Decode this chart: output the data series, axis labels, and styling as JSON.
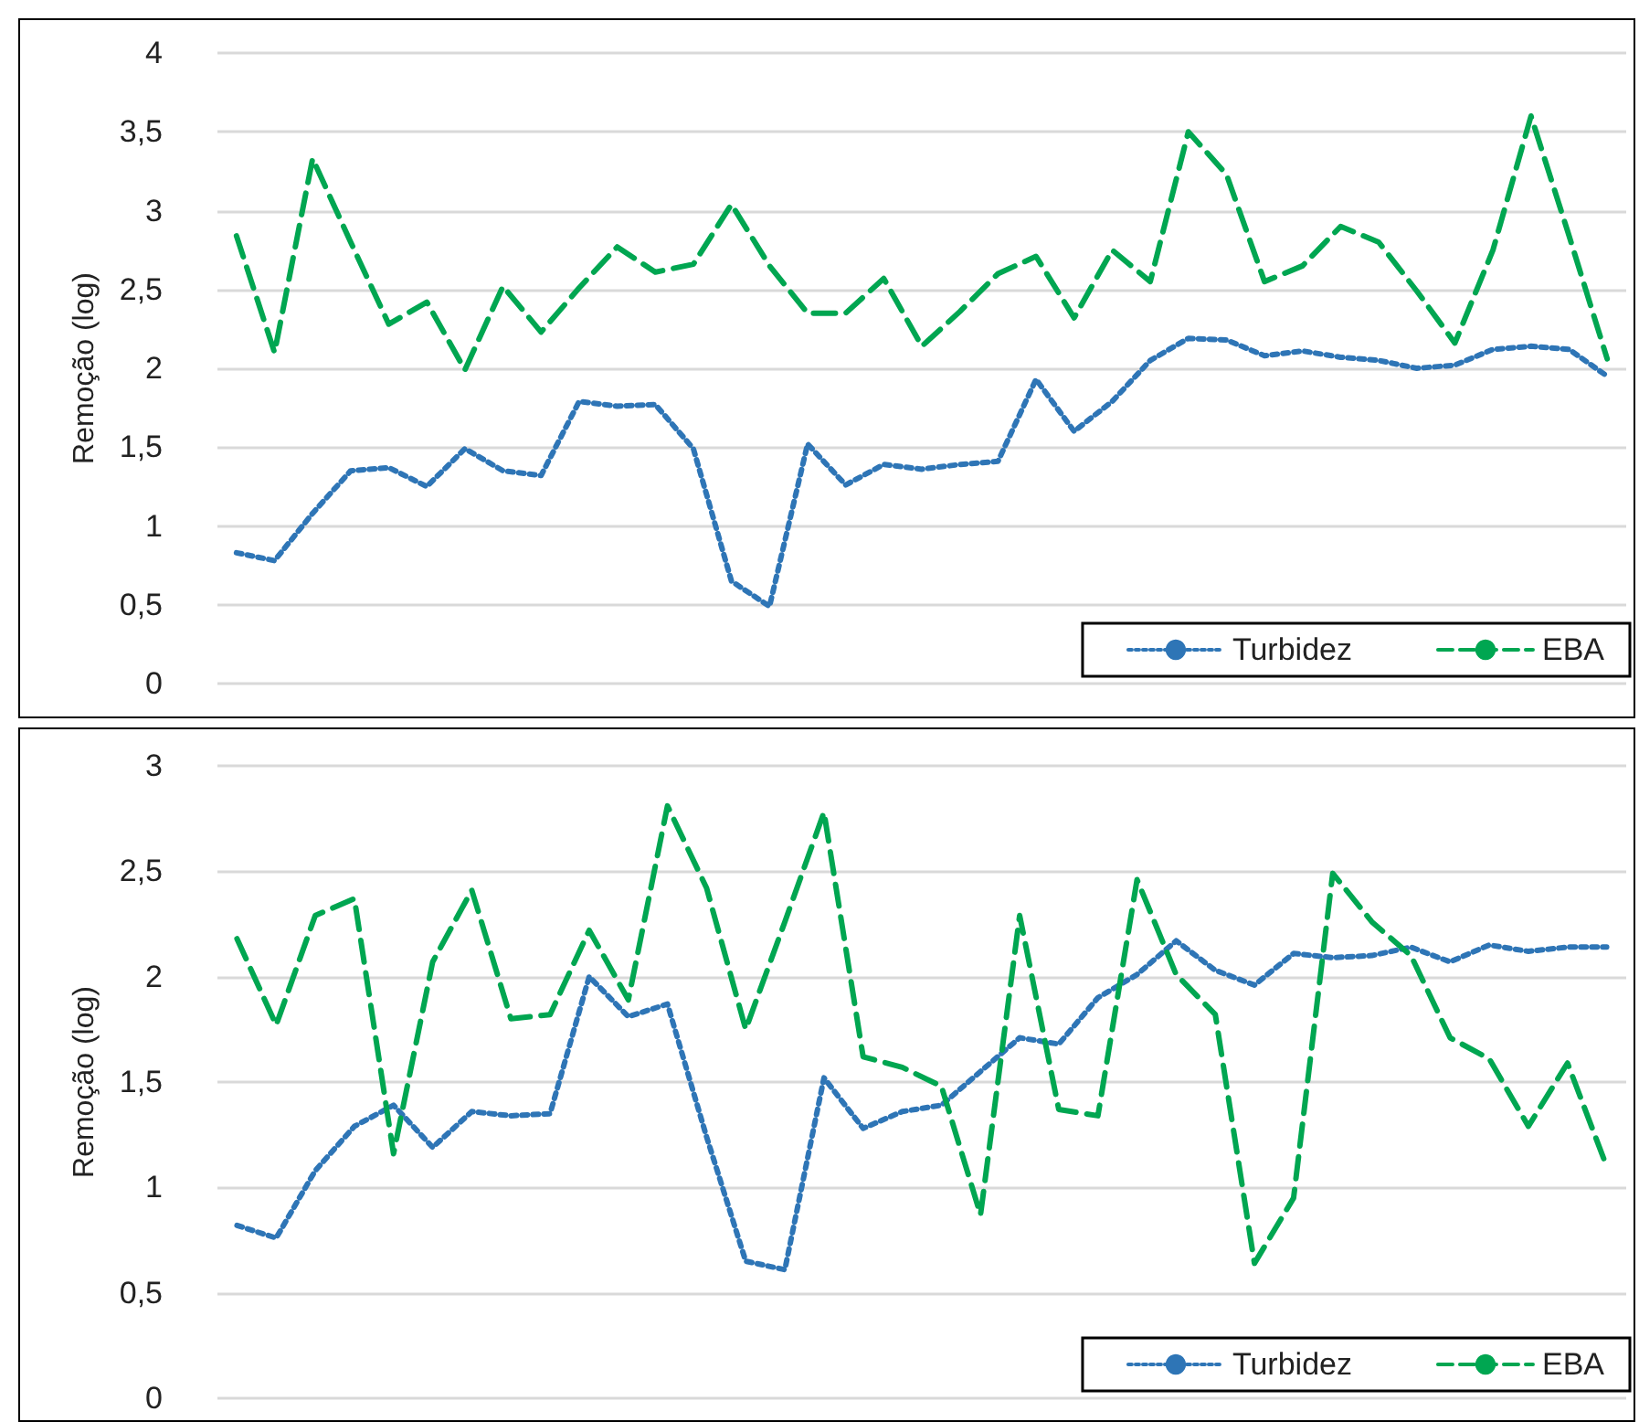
{
  "chart_data": [
    {
      "type": "line",
      "ylabel": "Remoção (log)",
      "categories": [
        null,
        null,
        null,
        null,
        null,
        null,
        null,
        null,
        null,
        null,
        null,
        null,
        null,
        null,
        null,
        null,
        null,
        null,
        null,
        null,
        null,
        null,
        null,
        null,
        null,
        null,
        null,
        null,
        null,
        null,
        null,
        null,
        null,
        null,
        null,
        null,
        null
      ],
      "ylim": [
        0,
        4
      ],
      "yticks": [
        0,
        {
          "value": 0.5,
          "label": "0,5"
        },
        1,
        {
          "value": 1.5,
          "label": "1,5"
        },
        2,
        {
          "value": 2.5,
          "label": "2,5"
        },
        3,
        {
          "value": 3.5,
          "label": "3,5"
        },
        4
      ],
      "grid": "y",
      "legend": "bottom right",
      "tick_labels": "y",
      "marker": "none",
      "series": [
        {
          "name": "Turbidez",
          "color": "#2e75b6",
          "line_style": "dotted",
          "values": [
            0.83,
            0.78,
            1.08,
            1.35,
            1.37,
            1.25,
            1.49,
            1.35,
            1.32,
            1.79,
            1.76,
            1.77,
            1.49,
            0.65,
            0.49,
            1.52,
            1.26,
            1.39,
            1.36,
            1.39,
            1.41,
            1.93,
            1.6,
            1.79,
            2.05,
            2.19,
            2.18,
            2.08,
            2.11,
            2.07,
            2.05,
            2.0,
            2.02,
            2.12,
            2.14,
            2.12,
            1.95
          ]
        },
        {
          "name": "EBA",
          "color": "#00a651",
          "line_style": "dashed",
          "values": [
            2.84,
            2.1,
            3.33,
            2.8,
            2.28,
            2.42,
            1.99,
            2.52,
            2.23,
            2.51,
            2.77,
            2.61,
            2.66,
            3.04,
            2.65,
            2.35,
            2.35,
            2.57,
            2.14,
            2.36,
            2.6,
            2.71,
            2.32,
            2.75,
            2.55,
            3.5,
            3.23,
            2.55,
            2.65,
            2.9,
            2.8,
            2.49,
            2.16,
            2.75,
            3.6,
            2.84,
            2.06
          ]
        }
      ]
    },
    {
      "type": "line",
      "ylabel": "Remoção (log)",
      "categories": [
        null,
        null,
        null,
        null,
        null,
        null,
        null,
        null,
        null,
        null,
        null,
        null,
        null,
        null,
        null,
        null,
        null,
        null,
        null,
        null,
        null,
        null,
        null,
        null,
        null,
        null,
        null,
        null,
        null,
        null,
        null,
        null,
        null,
        null,
        null,
        null
      ],
      "ylim": [
        0,
        3
      ],
      "yticks": [
        0,
        {
          "value": 0.5,
          "label": "0,5"
        },
        1,
        {
          "value": 1.5,
          "label": "1,5"
        },
        2,
        {
          "value": 2.5,
          "label": "2,5"
        },
        3
      ],
      "grid": "y",
      "legend": "bottom right",
      "tick_labels": "y",
      "marker": "none",
      "series": [
        {
          "name": "Turbidez",
          "color": "#2e75b6",
          "line_style": "dotted",
          "values": [
            0.82,
            0.76,
            1.08,
            1.29,
            1.39,
            1.19,
            1.36,
            1.34,
            1.35,
            2.0,
            1.81,
            1.87,
            1.24,
            0.65,
            0.61,
            1.52,
            1.28,
            1.36,
            1.39,
            1.55,
            1.71,
            1.68,
            1.9,
            2.01,
            2.17,
            2.03,
            1.96,
            2.11,
            2.09,
            2.1,
            2.14,
            2.07,
            2.15,
            2.12,
            2.14,
            2.14
          ]
        },
        {
          "name": "EBA",
          "color": "#00a651",
          "line_style": "dashed",
          "values": [
            2.18,
            1.77,
            2.29,
            2.37,
            1.16,
            2.07,
            2.41,
            1.8,
            1.82,
            2.22,
            1.89,
            2.81,
            2.42,
            1.75,
            2.26,
            2.78,
            1.62,
            1.57,
            1.48,
            0.87,
            2.29,
            1.37,
            1.34,
            2.46,
            2.01,
            1.82,
            0.64,
            0.95,
            2.49,
            2.26,
            2.1,
            1.71,
            1.61,
            1.29,
            1.59,
            1.1
          ]
        }
      ]
    }
  ]
}
